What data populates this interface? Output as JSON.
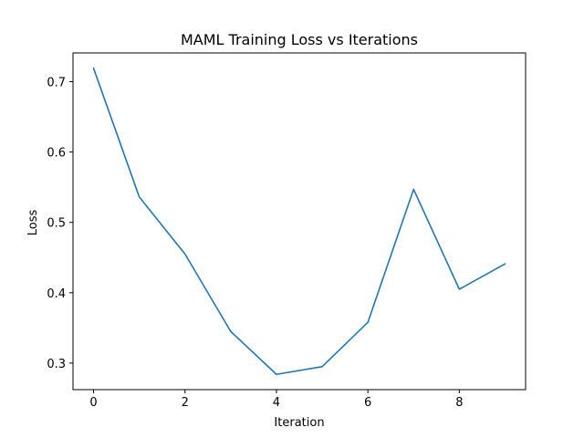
{
  "chart_data": {
    "type": "line",
    "title": "MAML Training Loss vs Iterations",
    "xlabel": "Iteration",
    "ylabel": "Loss",
    "x": [
      0,
      1,
      2,
      3,
      4,
      5,
      6,
      7,
      8,
      9
    ],
    "series": [
      {
        "values": [
          0.719,
          0.536,
          0.455,
          0.345,
          0.284,
          0.295,
          0.358,
          0.547,
          0.405,
          0.441
        ],
        "color": "#1f77b4"
      }
    ],
    "xlim": [
      -0.45,
      9.45
    ],
    "ylim": [
      0.2623,
      0.7408
    ],
    "xticks": [
      0,
      2,
      4,
      6,
      8
    ],
    "xtick_labels": [
      "0",
      "2",
      "4",
      "6",
      "8"
    ],
    "yticks": [
      0.3,
      0.4,
      0.5,
      0.6,
      0.7
    ],
    "ytick_labels": [
      "0.3",
      "0.4",
      "0.5",
      "0.6",
      "0.7"
    ],
    "grid": false,
    "legend": "none"
  }
}
